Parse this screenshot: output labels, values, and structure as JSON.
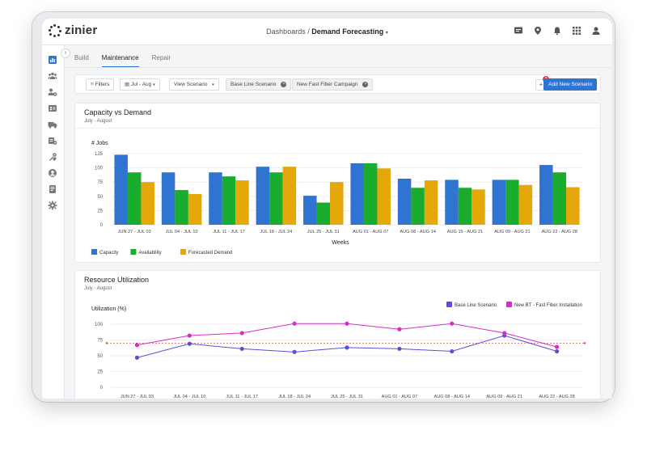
{
  "app": {
    "logo_text": "zinier"
  },
  "breadcrumb": {
    "parent": "Dashboards",
    "separator": "/",
    "current": "Demand Forecasting"
  },
  "topbar_icons": [
    "chat-icon",
    "location-pin-icon",
    "bell-icon",
    "apps-grid-icon",
    "user-icon"
  ],
  "sidebar": {
    "items": [
      {
        "name": "dashboard-icon",
        "active": true
      },
      {
        "name": "team-icon",
        "active": false
      },
      {
        "name": "resources-icon",
        "active": false
      },
      {
        "name": "id-card-icon",
        "active": false
      },
      {
        "name": "truck-icon",
        "active": false
      },
      {
        "name": "inventory-icon",
        "active": false
      },
      {
        "name": "tools-icon",
        "active": false
      },
      {
        "name": "user-circle-icon",
        "active": false
      },
      {
        "name": "book-icon",
        "active": false
      },
      {
        "name": "settings-icon",
        "active": false
      }
    ]
  },
  "tabs": [
    {
      "label": "Build",
      "active": false
    },
    {
      "label": "Maintenance",
      "active": true
    },
    {
      "label": "Repair",
      "active": false
    }
  ],
  "filterbar": {
    "filters_label": "Filters",
    "date_range": "Jul - Aug",
    "view_scenario": "View Scenario",
    "chips": [
      "Base Line Scenario",
      "New Fast Fiber Campaign"
    ],
    "notification_count": "3",
    "add_button": "Add New Scenario"
  },
  "colors": {
    "capacity": "#2f74d0",
    "availability": "#1aac2c",
    "forecasted": "#e5a80b",
    "baseline": "#5b4fd6",
    "new_bt": "#d42fc8",
    "threshold": "#e05a4c",
    "accent": "#2f74d0"
  },
  "chart_data": [
    {
      "type": "bar",
      "title": "Capacity vs Demand",
      "subtitle": "July - August",
      "ylabel": "# Jobs",
      "xlabel": "Weeks",
      "ylim": [
        0,
        125
      ],
      "yticks": [
        0,
        25,
        50,
        75,
        100,
        125
      ],
      "categories": [
        "JUN 27 - JUL 03",
        "JUL 04 - JUL 10",
        "JUL 11 - JUL 17",
        "JUL 18 - JUL 24",
        "JUL 25 - JUL 31",
        "AUG 01 - AUG 07",
        "AUG 08 - AUG 14",
        "AUG 15 - AUG 21",
        "AUG 09 - AUG 21",
        "AUG 22 - AUG 28"
      ],
      "series": [
        {
          "name": "Capacity",
          "values": [
            123,
            92,
            92,
            102,
            51,
            108,
            81,
            79,
            79,
            105
          ]
        },
        {
          "name": "Availability",
          "values": [
            92,
            61,
            85,
            92,
            39,
            108,
            65,
            65,
            79,
            92
          ]
        },
        {
          "name": "Forecasted Demand",
          "values": [
            75,
            54,
            78,
            102,
            75,
            99,
            78,
            62,
            70,
            66
          ]
        }
      ],
      "legend_position": "bottom-left"
    },
    {
      "type": "line",
      "title": "Resource Utilization",
      "subtitle": "July - August",
      "ylabel": "Utilization (%)",
      "ylim": [
        0,
        100
      ],
      "yticks": [
        0,
        25,
        50,
        75,
        100
      ],
      "categories": [
        "JUN 27 - JUL 03",
        "JUL 04 - JUL 10",
        "JUL 11 - JUL 17",
        "JUL 18 - JUL 24",
        "JUL 25 - JUL 31",
        "AUG 01 - AUG 07",
        "AUG 08 - AUG 14",
        "AUG 09 - AUG 21",
        "AUG 22 - AUG 28"
      ],
      "series": [
        {
          "name": "Base Line Scenario",
          "values": [
            47,
            69,
            61,
            56,
            63,
            61,
            57,
            82,
            57
          ]
        },
        {
          "name": "New BT - Fast Fiber Installation",
          "values": [
            67,
            82,
            86,
            101,
            101,
            92,
            101,
            86,
            64
          ]
        }
      ],
      "threshold": 70,
      "legend_position": "top-right"
    }
  ]
}
